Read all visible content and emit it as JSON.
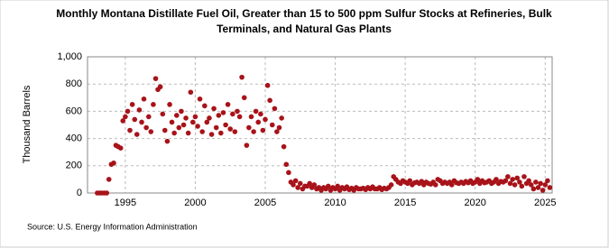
{
  "chart_data": {
    "type": "scatter",
    "title": [
      "Monthly Montana Distillate Fuel Oil, Greater than 15 to 500 ppm Sulfur Stocks at Refineries, Bulk",
      "Terminals, and Natural Gas Plants"
    ],
    "y_label": "Thousand Barrels",
    "source": "Source: U.S. Energy Information Administration",
    "color": "#a8131a",
    "grid": true,
    "xlim": [
      1992.3,
      2025.5
    ],
    "xticks": [
      1995,
      2000,
      2005,
      2010,
      2015,
      2020,
      2025
    ],
    "ylim": [
      0,
      1000
    ],
    "yticks": [
      0,
      200,
      400,
      600,
      800,
      {
        "value": 1000,
        "label": "1,000"
      }
    ],
    "x": [
      1993,
      1993.17,
      1993.33,
      1993.5,
      1993.67,
      1993.83,
      1994,
      1994.17,
      1994.33,
      1994.5,
      1994.67,
      1994.83,
      1995,
      1995.17,
      1995.33,
      1995.5,
      1995.67,
      1995.83,
      1996,
      1996.17,
      1996.33,
      1996.5,
      1996.67,
      1996.83,
      1997,
      1997.17,
      1997.33,
      1997.5,
      1997.67,
      1997.83,
      1998,
      1998.17,
      1998.33,
      1998.5,
      1998.67,
      1998.83,
      1999,
      1999.17,
      1999.33,
      1999.5,
      1999.67,
      1999.83,
      2000,
      2000.17,
      2000.33,
      2000.5,
      2000.67,
      2000.83,
      2001,
      2001.17,
      2001.33,
      2001.5,
      2001.67,
      2001.83,
      2002,
      2002.17,
      2002.33,
      2002.5,
      2002.67,
      2002.83,
      2003,
      2003.17,
      2003.33,
      2003.5,
      2003.67,
      2003.83,
      2004,
      2004.17,
      2004.33,
      2004.5,
      2004.67,
      2004.83,
      2005,
      2005.17,
      2005.33,
      2005.5,
      2005.67,
      2005.83,
      2006,
      2006.17,
      2006.33,
      2006.5,
      2006.67,
      2006.83,
      2007,
      2007.17,
      2007.33,
      2007.5,
      2007.67,
      2007.83,
      2008,
      2008.17,
      2008.33,
      2008.5,
      2008.67,
      2008.83,
      2009,
      2009.17,
      2009.33,
      2009.5,
      2009.67,
      2009.83,
      2010,
      2010.17,
      2010.33,
      2010.5,
      2010.67,
      2010.83,
      2011,
      2011.17,
      2011.33,
      2011.5,
      2011.67,
      2011.83,
      2012,
      2012.17,
      2012.33,
      2012.5,
      2012.67,
      2012.83,
      2013,
      2013.17,
      2013.33,
      2013.5,
      2013.67,
      2013.83,
      2014,
      2014.17,
      2014.33,
      2014.5,
      2014.67,
      2014.83,
      2015,
      2015.17,
      2015.33,
      2015.5,
      2015.67,
      2015.83,
      2016,
      2016.17,
      2016.33,
      2016.5,
      2016.67,
      2016.83,
      2017,
      2017.17,
      2017.33,
      2017.5,
      2017.67,
      2017.83,
      2018,
      2018.17,
      2018.33,
      2018.5,
      2018.67,
      2018.83,
      2019,
      2019.17,
      2019.33,
      2019.5,
      2019.67,
      2019.83,
      2020,
      2020.17,
      2020.33,
      2020.5,
      2020.67,
      2020.83,
      2021,
      2021.17,
      2021.33,
      2021.5,
      2021.67,
      2021.83,
      2022,
      2022.17,
      2022.33,
      2022.5,
      2022.67,
      2022.83,
      2023,
      2023.17,
      2023.33,
      2023.5,
      2023.67,
      2023.83,
      2024,
      2024.17,
      2024.33,
      2024.5,
      2024.67,
      2024.83,
      2025,
      2025.17,
      2025.33
    ],
    "values": [
      0,
      0,
      0,
      0,
      0,
      100,
      210,
      220,
      350,
      340,
      330,
      530,
      560,
      600,
      460,
      650,
      540,
      430,
      610,
      520,
      690,
      480,
      560,
      450,
      650,
      840,
      760,
      780,
      580,
      460,
      380,
      650,
      520,
      440,
      570,
      480,
      600,
      500,
      550,
      440,
      740,
      520,
      560,
      490,
      690,
      450,
      640,
      520,
      550,
      430,
      620,
      480,
      570,
      440,
      590,
      500,
      650,
      470,
      580,
      450,
      600,
      560,
      850,
      700,
      350,
      480,
      560,
      450,
      600,
      520,
      580,
      460,
      540,
      790,
      680,
      500,
      620,
      450,
      480,
      550,
      340,
      210,
      150,
      80,
      60,
      90,
      40,
      70,
      30,
      50,
      50,
      70,
      40,
      60,
      30,
      40,
      20,
      40,
      30,
      50,
      20,
      40,
      30,
      50,
      20,
      40,
      30,
      45,
      25,
      35,
      20,
      40,
      30,
      30,
      35,
      25,
      40,
      30,
      45,
      30,
      30,
      40,
      25,
      35,
      30,
      40,
      60,
      120,
      100,
      80,
      70,
      90,
      80,
      70,
      90,
      60,
      75,
      80,
      70,
      85,
      60,
      80,
      70,
      65,
      80,
      60,
      100,
      90,
      70,
      80,
      70,
      80,
      60,
      90,
      75,
      70,
      80,
      70,
      85,
      75,
      90,
      70,
      80,
      100,
      70,
      90,
      75,
      80,
      90,
      70,
      80,
      100,
      70,
      85,
      80,
      90,
      120,
      70,
      100,
      60,
      110,
      80,
      50,
      120,
      70,
      90,
      60,
      30,
      80,
      40,
      70,
      20,
      60,
      90,
      40
    ]
  }
}
